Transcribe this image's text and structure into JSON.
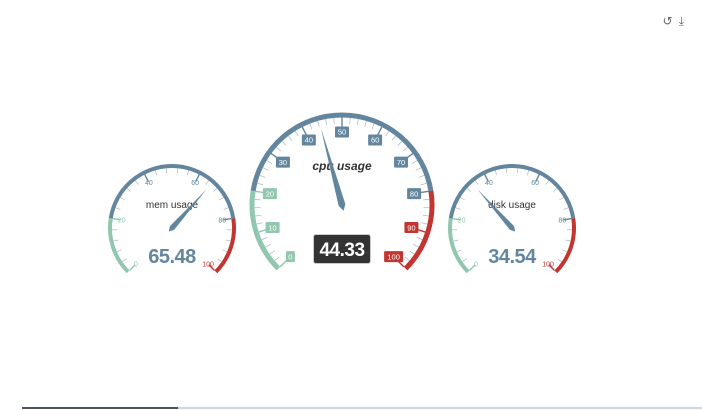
{
  "toolbar": {
    "restore_glyph": "↺",
    "download_glyph": "⤓",
    "restore_icon": "restore-icon",
    "download_icon": "download-icon"
  },
  "colors": {
    "low": "#91c7ae",
    "mid": "#63869e",
    "high": "#c23531",
    "value_text": "#63869e",
    "needle": "#63869e",
    "tick_label_bg": "#63869e"
  },
  "chart_data": [
    {
      "type": "gauge",
      "id": "mem",
      "title": "mem usage",
      "value": 65.48,
      "min": 0,
      "max": 100,
      "ticks": [
        0,
        20,
        40,
        60,
        80,
        100
      ],
      "bands": [
        [
          0.2,
          "#91c7ae"
        ],
        [
          0.8,
          "#63869e"
        ],
        [
          1.0,
          "#c23531"
        ]
      ]
    },
    {
      "type": "gauge",
      "id": "cpu",
      "title": "cpu usage",
      "value": 44.33,
      "min": 0,
      "max": 100,
      "ticks": [
        0,
        10,
        20,
        30,
        40,
        50,
        60,
        70,
        80,
        90,
        100
      ],
      "bands": [
        [
          0.2,
          "#91c7ae"
        ],
        [
          0.8,
          "#63869e"
        ],
        [
          1.0,
          "#c23531"
        ]
      ]
    },
    {
      "type": "gauge",
      "id": "disk",
      "title": "disk usage",
      "value": 34.54,
      "min": 0,
      "max": 100,
      "ticks": [
        0,
        20,
        40,
        60,
        80,
        100
      ],
      "bands": [
        [
          0.2,
          "#91c7ae"
        ],
        [
          0.8,
          "#63869e"
        ],
        [
          1.0,
          "#c23531"
        ]
      ]
    }
  ]
}
